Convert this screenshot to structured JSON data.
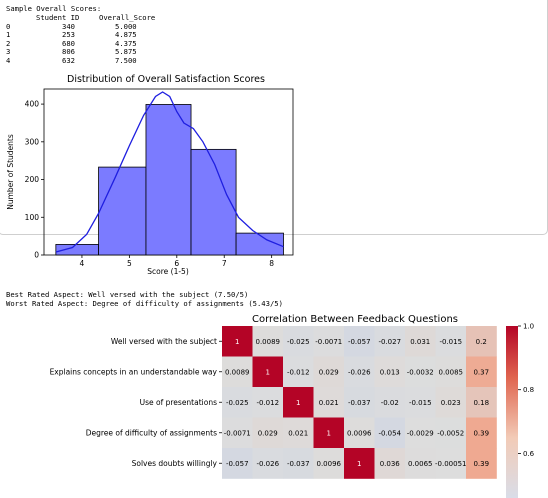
{
  "output": {
    "header": "Sample Overall Scores:",
    "table": {
      "columns": [
        "Student ID",
        "Overall_Score"
      ],
      "rows": [
        {
          "index": "0",
          "student_id": "340",
          "score": "5.000"
        },
        {
          "index": "1",
          "student_id": "253",
          "score": "4.875"
        },
        {
          "index": "2",
          "student_id": "680",
          "score": "4.375"
        },
        {
          "index": "3",
          "student_id": "806",
          "score": "5.875"
        },
        {
          "index": "4",
          "student_id": "632",
          "score": "7.500"
        }
      ]
    },
    "best_line": "Best Rated Aspect: Well versed with the subject (7.50/5)",
    "worst_line": "Worst Rated Aspect: Degree of difficulty of assignments (5.43/5)"
  },
  "chart_data": [
    {
      "type": "bar",
      "title": "Distribution of Overall Satisfaction Scores",
      "xlabel": "Score (1-5)",
      "ylabel": "Number of Students",
      "bins": [
        {
          "x0": 3.45,
          "x1": 4.35,
          "count": 28
        },
        {
          "x0": 4.35,
          "x1": 5.35,
          "count": 233
        },
        {
          "x0": 5.35,
          "x1": 6.3,
          "count": 399
        },
        {
          "x0": 6.3,
          "x1": 7.25,
          "count": 280
        },
        {
          "x0": 7.25,
          "x1": 8.25,
          "count": 58
        }
      ],
      "kde": [
        [
          3.45,
          8
        ],
        [
          3.8,
          20
        ],
        [
          4.1,
          55
        ],
        [
          4.35,
          110
        ],
        [
          4.7,
          205
        ],
        [
          5.0,
          290
        ],
        [
          5.3,
          370
        ],
        [
          5.55,
          420
        ],
        [
          5.7,
          432
        ],
        [
          5.85,
          420
        ],
        [
          6.0,
          380
        ],
        [
          6.15,
          350
        ],
        [
          6.35,
          335
        ],
        [
          6.55,
          300
        ],
        [
          6.8,
          240
        ],
        [
          7.05,
          160
        ],
        [
          7.3,
          100
        ],
        [
          7.6,
          65
        ],
        [
          7.9,
          40
        ],
        [
          8.25,
          22
        ]
      ],
      "xticks": [
        4,
        5,
        6,
        7,
        8
      ],
      "yticks": [
        0,
        100,
        200,
        300,
        400
      ],
      "xlim": [
        3.2,
        8.45
      ],
      "ylim": [
        0,
        440
      ],
      "bar_color": "#7b7bff",
      "line_color": "#1f1fe0",
      "grid": false
    },
    {
      "type": "heatmap",
      "title": "Correlation Between Feedback Questions",
      "rows": [
        "Well versed with the subject",
        "Explains concepts in an understandable way",
        "Use of presentations",
        "Degree of difficulty of assignments",
        "Solves doubts willingly"
      ],
      "values": [
        [
          1,
          0.0089,
          -0.025,
          -0.0071,
          -0.057,
          -0.027,
          0.031,
          -0.015,
          0.2
        ],
        [
          0.0089,
          1,
          -0.012,
          0.029,
          -0.026,
          0.013,
          -0.0032,
          0.0085,
          0.37
        ],
        [
          -0.025,
          -0.012,
          1,
          0.021,
          -0.037,
          -0.02,
          -0.015,
          0.023,
          0.18
        ],
        [
          -0.0071,
          0.029,
          0.021,
          1,
          0.0096,
          -0.054,
          -0.0029,
          -0.0052,
          0.39
        ],
        [
          -0.057,
          -0.026,
          -0.037,
          0.0096,
          1,
          0.036,
          0.0065,
          -0.00051,
          0.39
        ]
      ],
      "labels": [
        [
          "1",
          "0.0089",
          "-0.025",
          "-0.0071",
          "-0.057",
          "-0.027",
          "0.031",
          "-0.015",
          "0.2"
        ],
        [
          "0.0089",
          "1",
          "-0.012",
          "0.029",
          "-0.026",
          "0.013",
          "-0.0032",
          "0.0085",
          "0.37"
        ],
        [
          "-0.025",
          "-0.012",
          "1",
          "0.021",
          "-0.037",
          "-0.02",
          "-0.015",
          "0.023",
          "0.18"
        ],
        [
          "-0.0071",
          "0.029",
          "0.021",
          "1",
          "0.0096",
          "-0.054",
          "-0.0029",
          "-0.0052",
          "0.39"
        ],
        [
          "-0.057",
          "-0.026",
          "-0.037",
          "0.0096",
          "1",
          "0.036",
          "0.0065",
          "-0.00051",
          "0.39"
        ]
      ],
      "colorbar_ticks": [
        "1.0",
        "0.8",
        "0.6"
      ],
      "colormap": "coolwarm"
    }
  ]
}
